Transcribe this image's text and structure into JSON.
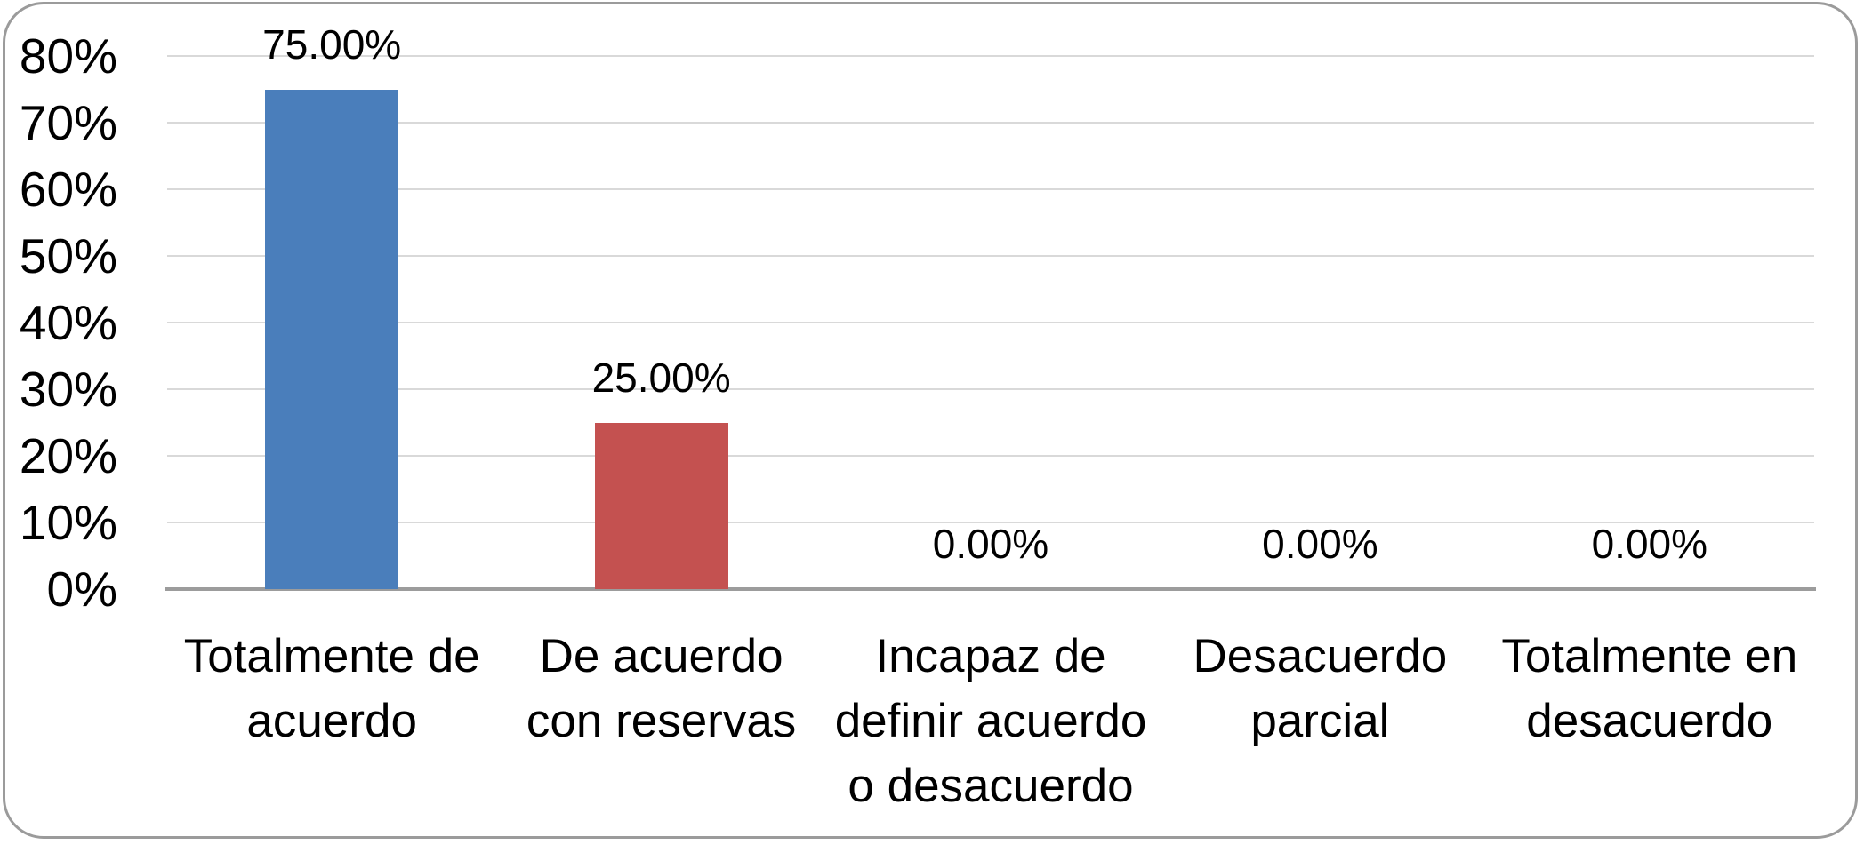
{
  "chart_data": {
    "type": "bar",
    "title": "",
    "xlabel": "",
    "ylabel": "",
    "categories": [
      "Totalmente de acuerdo",
      "De acuerdo con reservas",
      "Incapaz de definir acuerdo o desacuerdo",
      "Desacuerdo parcial",
      "Totalmente en desacuerdo"
    ],
    "category_lines": [
      [
        "Totalmente de",
        "acuerdo"
      ],
      [
        "De acuerdo",
        "con reservas"
      ],
      [
        "Incapaz de",
        "definir acuerdo",
        "o desacuerdo"
      ],
      [
        "Desacuerdo",
        "parcial"
      ],
      [
        "Totalmente en",
        "desacuerdo"
      ]
    ],
    "values": [
      75,
      25,
      0,
      0,
      0
    ],
    "value_labels": [
      "75.00%",
      "25.00%",
      "0.00%",
      "0.00%",
      "0.00%"
    ],
    "bar_colors": [
      "#4a7ebb",
      "#c45150",
      "#4a7ebb",
      "#4a7ebb",
      "#4a7ebb"
    ],
    "ylim": [
      0,
      80
    ],
    "ytick_step": 10,
    "yticks": [
      "0%",
      "10%",
      "20%",
      "30%",
      "40%",
      "50%",
      "60%",
      "70%",
      "80%"
    ],
    "grid": true,
    "legend": false,
    "gridline_color": "#d9d9d9",
    "axis_line_color": "#9c9c9c",
    "frame_border_color": "#9b9b9b",
    "background": "#ffffff"
  }
}
